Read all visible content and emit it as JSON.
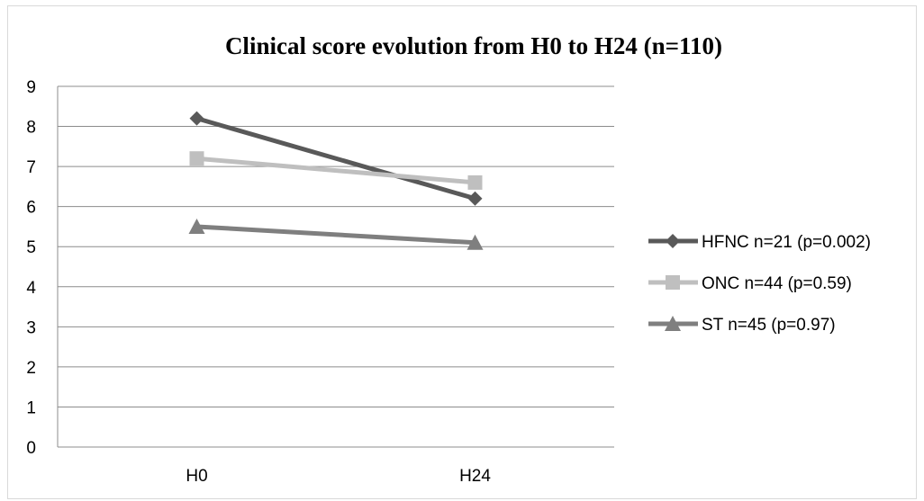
{
  "chart_data": {
    "type": "line",
    "title": "Clinical score evolution from H0 to H24 (n=110)",
    "categories": [
      "H0",
      "H24"
    ],
    "ylim": [
      0,
      9
    ],
    "yticks": [
      0,
      1,
      2,
      3,
      4,
      5,
      6,
      7,
      8,
      9
    ],
    "grid": true,
    "legend_position": "right",
    "series": [
      {
        "name": "HFNC n=21 (p=0.002)",
        "values": [
          8.2,
          6.2
        ],
        "color": "#595959",
        "marker": "diamond"
      },
      {
        "name": "ONC n=44 (p=0.59)",
        "values": [
          7.2,
          6.6
        ],
        "color": "#bfbfbf",
        "marker": "square"
      },
      {
        "name": "ST n=45 (p=0.97)",
        "values": [
          5.5,
          5.1
        ],
        "color": "#7f7f7f",
        "marker": "triangle"
      }
    ]
  }
}
